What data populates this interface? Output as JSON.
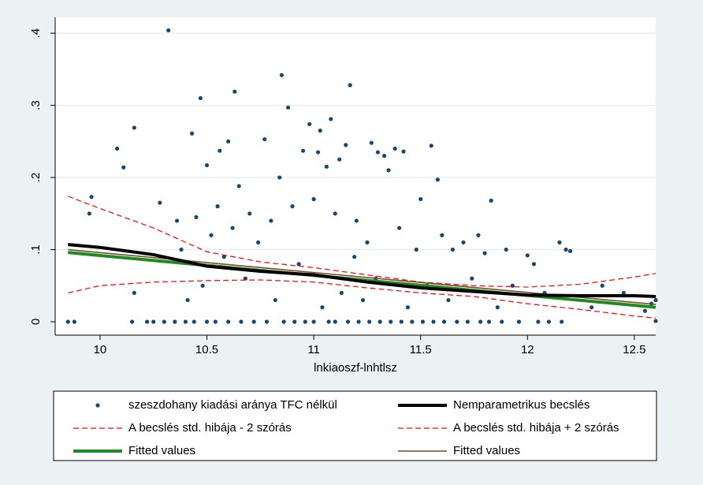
{
  "chart_data": {
    "type": "scatter",
    "x_label": "lnkiaoszf-lnhtlsz",
    "xlim": [
      9.79,
      12.6
    ],
    "ylim": [
      -0.0186,
      0.422
    ],
    "xticks": [
      10,
      10.5,
      11,
      11.5,
      12,
      12.5
    ],
    "yticks": [
      0,
      {
        "value": 0.1,
        "label": ".1"
      },
      {
        "value": 0.2,
        "label": ".2"
      },
      {
        "value": 0.3,
        "label": ".3"
      },
      {
        "value": 0.4,
        "label": ".4"
      }
    ],
    "grid": true,
    "legend": "bottom",
    "series": [
      {
        "name": "szeszdohany kiadási aránya TFC nélkül",
        "type": "scatter",
        "color": "#1a476f",
        "x": [
          9.85,
          9.88,
          9.95,
          9.96,
          10.08,
          10.11,
          10.16,
          10.15,
          10.16,
          10.22,
          10.25,
          10.28,
          10.3,
          10.32,
          10.35,
          10.36,
          10.38,
          10.4,
          10.41,
          10.43,
          10.44,
          10.45,
          10.47,
          10.48,
          10.5,
          10.5,
          10.52,
          10.54,
          10.55,
          10.56,
          10.58,
          10.6,
          10.6,
          10.62,
          10.63,
          10.65,
          10.66,
          10.68,
          10.7,
          10.72,
          10.74,
          10.77,
          10.78,
          10.8,
          10.82,
          10.84,
          10.85,
          10.86,
          10.88,
          10.9,
          10.91,
          10.93,
          10.95,
          10.96,
          10.98,
          11.0,
          11.0,
          11.02,
          11.03,
          11.04,
          11.06,
          11.07,
          11.08,
          11.1,
          11.1,
          11.12,
          11.13,
          11.15,
          11.16,
          11.17,
          11.19,
          11.2,
          11.21,
          11.23,
          11.25,
          11.26,
          11.27,
          11.29,
          11.3,
          11.31,
          11.33,
          11.35,
          11.36,
          11.38,
          11.4,
          11.41,
          11.42,
          11.44,
          11.46,
          11.48,
          11.5,
          11.51,
          11.53,
          11.55,
          11.56,
          11.58,
          11.6,
          11.61,
          11.63,
          11.65,
          11.67,
          11.7,
          11.72,
          11.74,
          11.77,
          11.78,
          11.8,
          11.82,
          11.83,
          11.86,
          11.88,
          11.9,
          11.93,
          11.96,
          12.0,
          12.03,
          12.05,
          12.08,
          12.1,
          12.15,
          12.16,
          12.18,
          12.2,
          12.3,
          12.35,
          12.45,
          12.55,
          12.58,
          12.6,
          12.6
        ],
        "values": [
          0,
          0,
          0.15,
          0.173,
          0.24,
          0.214,
          0.269,
          0,
          0.04,
          0,
          0,
          0.165,
          0,
          0.404,
          0,
          0.14,
          0.1,
          0,
          0.03,
          0.261,
          0,
          0.145,
          0.31,
          0.05,
          0.217,
          0,
          0.12,
          0,
          0.16,
          0.237,
          0.09,
          0.25,
          0,
          0.13,
          0.319,
          0.188,
          0,
          0.06,
          0.15,
          0,
          0.11,
          0.253,
          0,
          0.14,
          0.03,
          0.2,
          0.342,
          0,
          0.297,
          0.16,
          0,
          0.08,
          0.237,
          0,
          0.274,
          0.17,
          0,
          0.235,
          0.265,
          0.02,
          0.215,
          0,
          0.281,
          0.15,
          0,
          0.225,
          0.04,
          0.245,
          0,
          0.328,
          0.09,
          0.14,
          0,
          0.03,
          0.11,
          0,
          0.248,
          0.06,
          0.235,
          0,
          0.23,
          0.21,
          0,
          0.24,
          0.13,
          0,
          0.236,
          0.02,
          0,
          0.1,
          0.17,
          0,
          0.05,
          0.244,
          0,
          0.197,
          0.12,
          0,
          0.03,
          0.1,
          0,
          0.11,
          0,
          0.06,
          0.12,
          0,
          0.095,
          0,
          0.168,
          0.02,
          0,
          0.1,
          0.05,
          0,
          0.092,
          0.08,
          0,
          0.04,
          0,
          0.11,
          0,
          0.1,
          0.098,
          0.02,
          0.05,
          0.04,
          0.015,
          0.025,
          0.001,
          0.03
        ]
      },
      {
        "name": "Nemparametrikus becslés",
        "type": "line",
        "color": "#000000",
        "width": 4,
        "dash": false,
        "x": [
          9.85,
          10,
          10.25,
          10.5,
          10.75,
          11,
          11.25,
          11.5,
          11.75,
          12,
          12.25,
          12.5,
          12.6
        ],
        "values": [
          0.107,
          0.103,
          0.093,
          0.077,
          0.07,
          0.065,
          0.055,
          0.047,
          0.042,
          0.037,
          0.036,
          0.036,
          0.035
        ]
      },
      {
        "name": "A becslés std. hibája - 2 szórás",
        "type": "line",
        "color": "#ff0000",
        "width": 1.2,
        "dash": true,
        "x": [
          9.85,
          10,
          10.25,
          10.5,
          10.75,
          11,
          11.25,
          11.5,
          11.75,
          12,
          12.25,
          12.5,
          12.6
        ],
        "values": [
          0.04,
          0.05,
          0.055,
          0.057,
          0.058,
          0.055,
          0.047,
          0.04,
          0.035,
          0.025,
          0.017,
          0.008,
          0.005
        ]
      },
      {
        "name": "A becslés std. hibája + 2 szórás",
        "type": "line",
        "color": "#ff0000",
        "width": 1.2,
        "dash": true,
        "x": [
          9.85,
          10,
          10.25,
          10.5,
          10.75,
          11,
          11.25,
          11.5,
          11.75,
          12,
          12.25,
          12.5,
          12.6
        ],
        "values": [
          0.174,
          0.157,
          0.13,
          0.097,
          0.083,
          0.075,
          0.065,
          0.055,
          0.05,
          0.048,
          0.052,
          0.062,
          0.067
        ]
      },
      {
        "name": "Fitted values",
        "type": "line",
        "color": "#1f8a1f",
        "width": 4,
        "dash": false,
        "x": [
          9.85,
          12.6
        ],
        "values": [
          0.096,
          0.02
        ]
      },
      {
        "name": "Fitted values",
        "type": "line",
        "color": "#7a4b2a",
        "width": 1.6,
        "dash": false,
        "x": [
          9.85,
          12.6
        ],
        "values": [
          0.1,
          0.024
        ]
      }
    ]
  }
}
